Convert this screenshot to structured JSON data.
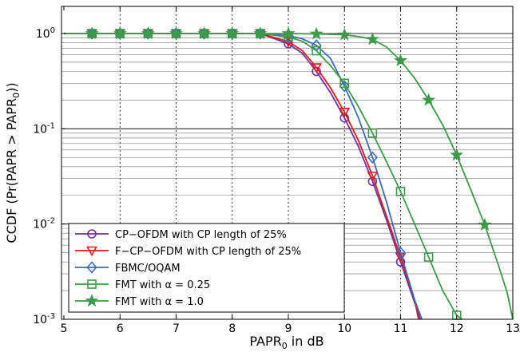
{
  "chart_data": {
    "type": "line",
    "title": "",
    "xlabel_main": "PAPR",
    "xlabel_sub": "0",
    "xlabel_rest": " in dB",
    "ylabel_parts": {
      "a": "CCDF (Pr(PAPR > PAPR",
      "sub": "0",
      "b": "))"
    },
    "x_scale": "linear",
    "y_scale": "log",
    "xlim": [
      5,
      13
    ],
    "ylim": [
      0.001,
      2
    ],
    "x_ticks": [
      5,
      6,
      7,
      8,
      9,
      10,
      11,
      12,
      13
    ],
    "y_ticks": [
      {
        "value": 1,
        "base": "10",
        "exp": "0"
      },
      {
        "value": 0.1,
        "base": "10",
        "exp": "-1"
      },
      {
        "value": 0.01,
        "base": "10",
        "exp": "-2"
      },
      {
        "value": 0.001,
        "base": "10",
        "exp": "-3"
      }
    ],
    "grid": true,
    "legend_position": "bottom-left",
    "series": [
      {
        "name": "CP−OFDM with CP length of 25%",
        "color": "#7030a0",
        "marker": "circle",
        "x": [
          5.0,
          5.5,
          6.0,
          6.5,
          7.0,
          7.5,
          8.0,
          8.5,
          9.0,
          9.25,
          9.5,
          9.75,
          10.0,
          10.25,
          10.5,
          10.75,
          11.0,
          11.25,
          11.35
        ],
        "y": [
          1,
          1,
          1,
          1,
          1,
          1,
          1,
          1,
          0.78,
          0.62,
          0.4,
          0.24,
          0.13,
          0.065,
          0.028,
          0.011,
          0.004,
          0.0015,
          0.001
        ],
        "marker_x": [
          5.5,
          6.0,
          6.5,
          7.0,
          7.5,
          8.0,
          8.5,
          9.0,
          9.5,
          10.0,
          10.5,
          11.0
        ]
      },
      {
        "name": "F−CP−OFDM with CP length of 25%",
        "color": "#e0191b",
        "marker": "triangle-down",
        "x": [
          5.0,
          5.5,
          6.0,
          6.5,
          7.0,
          7.5,
          8.0,
          8.5,
          9.0,
          9.25,
          9.5,
          9.75,
          10.0,
          10.25,
          10.5,
          10.75,
          11.0,
          11.25,
          11.32
        ],
        "y": [
          1,
          1,
          1,
          1,
          1,
          1,
          1,
          1,
          0.82,
          0.66,
          0.44,
          0.27,
          0.15,
          0.075,
          0.032,
          0.012,
          0.0045,
          0.0016,
          0.001
        ],
        "marker_x": [
          5.5,
          6.0,
          6.5,
          7.0,
          7.5,
          8.0,
          8.5,
          9.0,
          9.5,
          10.0,
          10.5,
          11.0
        ]
      },
      {
        "name": "FBMC/OQAM",
        "color": "#3a6cb8",
        "marker": "diamond",
        "x": [
          5.0,
          5.5,
          6.0,
          6.5,
          7.0,
          7.5,
          8.0,
          8.5,
          9.0,
          9.25,
          9.5,
          9.75,
          10.0,
          10.25,
          10.5,
          10.75,
          11.0,
          11.25,
          11.38
        ],
        "y": [
          1,
          1,
          1,
          1,
          1,
          1,
          1,
          1,
          0.95,
          0.88,
          0.75,
          0.55,
          0.28,
          0.13,
          0.05,
          0.017,
          0.005,
          0.0016,
          0.001
        ],
        "marker_x": [
          5.5,
          6.0,
          6.5,
          7.0,
          7.5,
          8.0,
          8.5,
          9.0,
          9.5,
          10.0,
          10.5,
          11.0
        ]
      },
      {
        "name": "FMT with α = 0.25",
        "color": "#3c9a4a",
        "marker": "square",
        "x": [
          5.0,
          5.5,
          6.0,
          6.5,
          7.0,
          7.5,
          8.0,
          8.5,
          9.0,
          9.25,
          9.5,
          9.75,
          10.0,
          10.25,
          10.5,
          10.75,
          11.0,
          11.25,
          11.5,
          11.75,
          12.0,
          12.1
        ],
        "y": [
          1,
          1,
          1,
          1,
          1,
          1,
          1,
          1,
          0.92,
          0.83,
          0.66,
          0.46,
          0.3,
          0.17,
          0.09,
          0.045,
          0.022,
          0.01,
          0.0045,
          0.002,
          0.0011,
          0.001
        ],
        "marker_x": [
          5.5,
          6.0,
          6.5,
          7.0,
          7.5,
          8.0,
          8.5,
          9.0,
          9.5,
          10.0,
          10.5,
          11.0,
          11.5,
          12.0
        ]
      },
      {
        "name": "FMT with α = 1.0",
        "color": "#3c9a4a",
        "marker": "star",
        "x": [
          5.0,
          5.5,
          6.0,
          6.5,
          7.0,
          7.5,
          8.0,
          8.5,
          9.0,
          9.5,
          10.0,
          10.25,
          10.5,
          10.75,
          11.0,
          11.25,
          11.5,
          11.75,
          12.0,
          12.25,
          12.5,
          12.75,
          12.9,
          13.0
        ],
        "y": [
          1,
          1,
          1,
          1,
          1,
          1,
          1,
          1,
          1,
          0.99,
          0.97,
          0.93,
          0.87,
          0.72,
          0.52,
          0.34,
          0.2,
          0.11,
          0.053,
          0.023,
          0.0098,
          0.0036,
          0.0019,
          0.001
        ],
        "marker_x": [
          5.5,
          6.0,
          6.5,
          7.0,
          7.5,
          8.0,
          8.5,
          9.0,
          9.5,
          10.0,
          10.5,
          11.0,
          11.5,
          12.0,
          12.5
        ]
      }
    ]
  }
}
